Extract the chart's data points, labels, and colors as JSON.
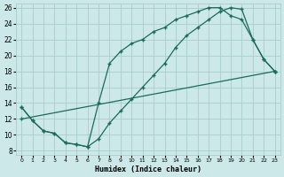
{
  "xlabel": "Humidex (Indice chaleur)",
  "bg_color": "#cce8e8",
  "grid_color": "#aacccc",
  "line_color": "#1a6b5a",
  "xlim": [
    0,
    23
  ],
  "ylim": [
    8,
    26
  ],
  "xticks": [
    0,
    1,
    2,
    3,
    4,
    5,
    6,
    7,
    8,
    9,
    10,
    11,
    12,
    13,
    14,
    15,
    16,
    17,
    18,
    19,
    20,
    21,
    22,
    23
  ],
  "yticks": [
    8,
    10,
    12,
    14,
    16,
    18,
    20,
    22,
    24,
    26
  ],
  "line1_x": [
    0,
    1,
    2,
    3,
    4,
    5,
    6,
    7,
    8,
    9,
    10,
    11,
    12,
    13,
    14,
    15,
    16,
    17,
    18,
    19,
    20,
    21,
    22,
    23
  ],
  "line1_y": [
    13.5,
    11.8,
    10.5,
    10.2,
    9.0,
    8.8,
    8.5,
    9.5,
    11.5,
    13.0,
    14.5,
    16.0,
    17.5,
    19.0,
    21.0,
    22.5,
    23.5,
    24.5,
    25.5,
    26.0,
    25.8,
    22.0,
    19.5,
    18.0
  ],
  "line2_x": [
    0,
    1,
    2,
    3,
    4,
    5,
    6,
    7,
    8,
    9,
    10,
    11,
    12,
    13,
    14,
    15,
    16,
    17,
    18,
    19,
    20,
    21,
    22,
    23
  ],
  "line2_y": [
    13.5,
    11.8,
    10.5,
    10.2,
    9.0,
    8.8,
    8.5,
    14.0,
    19.0,
    20.5,
    21.5,
    22.0,
    23.0,
    23.5,
    24.5,
    25.0,
    25.5,
    26.0,
    26.0,
    25.0,
    24.5,
    22.0,
    19.5,
    18.0
  ],
  "line3_x": [
    0,
    23
  ],
  "line3_y": [
    12.0,
    18.0
  ]
}
